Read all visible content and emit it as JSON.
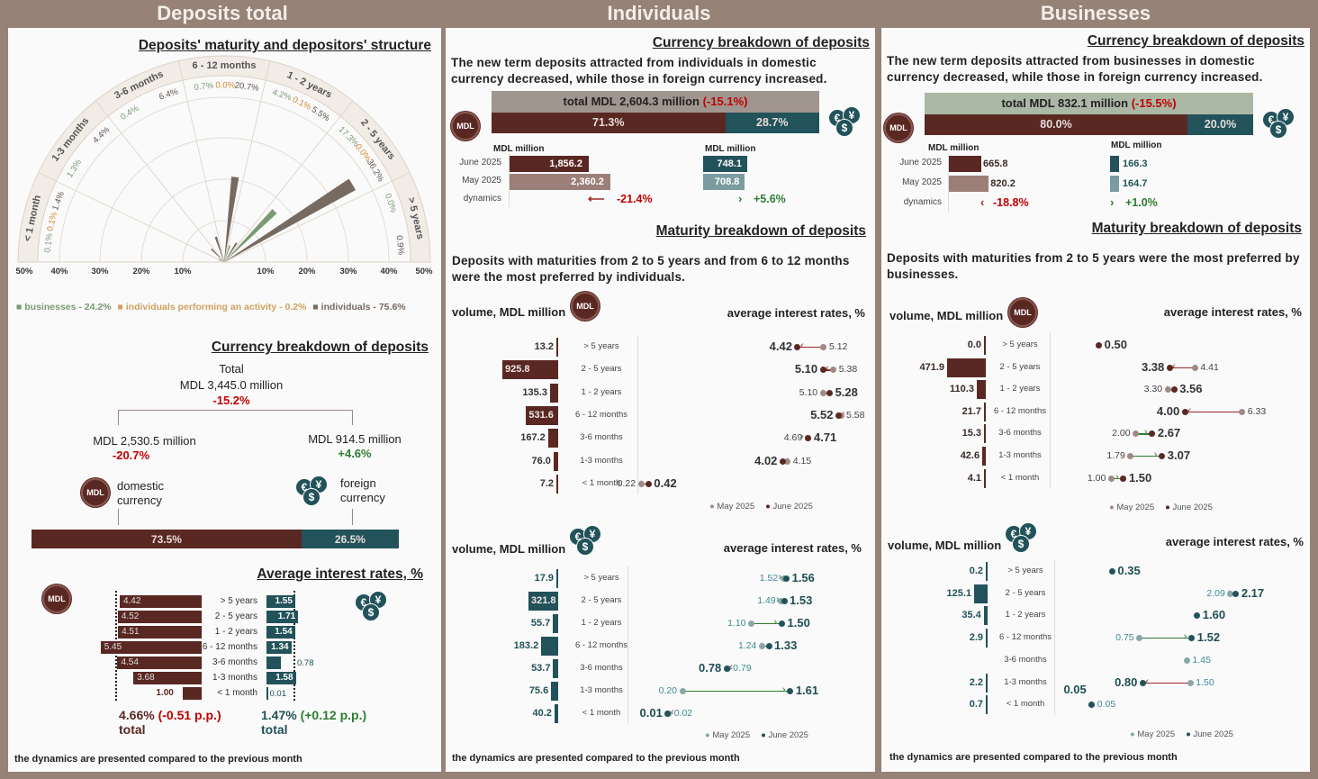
{
  "colors": {
    "background": "#968276",
    "mdl": "#5a2823",
    "fx": "#22525a",
    "mdl_light": "#9c7f79",
    "fx_light": "#7a9ca0",
    "businesses": "#7a9a74",
    "individuals_activity": "#d8b07a",
    "individuals": "#776a61",
    "decrease": "#c00000",
    "increase": "#2e7d32"
  },
  "icons": {
    "mdl": "MDL",
    "coins": [
      "€",
      "¥",
      "$"
    ]
  },
  "headers": {
    "total": "Deposits total",
    "individuals": "Individuals",
    "businesses": "Businesses"
  },
  "terms": [
    "> 5 years",
    "2 - 5 years",
    "1 - 2 years",
    "6 - 12 months",
    "3-6 months",
    "1-3 months",
    "< 1 month"
  ],
  "total": {
    "maturity_title": "Deposits' maturity and depositors' structure",
    "legend": [
      "businesses - 24.2%",
      "individuals performing an activity - 0.2%",
      "individuals - 75.6%"
    ],
    "currency": {
      "title": "Currency breakdown of deposits",
      "total_label": "Total",
      "total_value": "MDL 3,445.0 million",
      "total_change": "-15.2%",
      "domestic_value": "MDL 2,530.5 million",
      "domestic_change": "-20.7%",
      "domestic_label": "domestic currency",
      "foreign_value": "MDL 914.5 million",
      "foreign_change": "+4.6%",
      "foreign_label": "foreign currency",
      "domestic_share_label": "73.5%",
      "foreign_share_label": "26.5%",
      "domestic_share": 73.5
    },
    "rates": {
      "title": "Average interest rates, %",
      "mdl_total": "4.66%",
      "mdl_change": "(-0.51 p.p.)",
      "fx_total": "1.47%",
      "fx_change": "(+0.12 p.p.)",
      "total_label": "total"
    },
    "footnote": "the dynamics are presented compared to the previous month"
  },
  "individuals": {
    "currency": {
      "title": "Currency breakdown of deposits",
      "text": "The new term deposits attracted from individuals in domestic currency decreased, while those in foreign currency increased.",
      "total": "total MDL 2,604.3 million",
      "total_change": "(-15.1%)",
      "mdl_share": 71.3,
      "mdl_share_label": "71.3%",
      "fx_share_label": "28.7%",
      "unit": "MDL million",
      "rows": [
        "June 2025",
        "May 2025",
        "dynamics"
      ],
      "mdl_values": [
        1856.2,
        2360.2
      ],
      "mdl_labels": [
        "1,856.2",
        "2,360.2"
      ],
      "mdl_change": "-21.4%",
      "fx_values": [
        748.1,
        708.8
      ],
      "fx_labels": [
        "748.1",
        "708.8"
      ],
      "fx_change": "+5.6%"
    },
    "maturity": {
      "title": "Maturity breakdown of deposits",
      "text": "Deposits with maturities from 2 to 5 years and from 6 to 12 months were the most preferred by individuals.",
      "volume_label": "volume, MDL million",
      "rates_label": "average interest rates, %"
    },
    "footnote": "the dynamics are presented compared to the previous month"
  },
  "businesses": {
    "currency": {
      "title": "Currency breakdown of deposits",
      "text": "The new term deposits attracted from businesses in domestic currency decreased, while those in foreign currency increased.",
      "total": "total MDL 832.1 million",
      "total_change": "(-15.5%)",
      "mdl_share": 80.0,
      "mdl_share_label": "80.0%",
      "fx_share_label": "20.0%",
      "unit": "MDL million",
      "rows": [
        "June 2025",
        "May 2025",
        "dynamics"
      ],
      "mdl_values": [
        665.8,
        820.2
      ],
      "mdl_labels": [
        "665.8",
        "820.2"
      ],
      "mdl_change": "-18.8%",
      "fx_values": [
        166.3,
        164.7
      ],
      "fx_labels": [
        "166.3",
        "164.7"
      ],
      "fx_change": "+1.0%"
    },
    "maturity": {
      "title": "Maturity breakdown of deposits",
      "text": "Deposits with maturities from 2 to 5 years were the most preferred by businesses.",
      "volume_label": "volume, MDL million",
      "rates_label": "average interest rates, %"
    },
    "footnote": "the dynamics are presented compared to the previous month"
  },
  "chart_data": [
    {
      "type": "polar-bar",
      "categories": [
        "< 1 month",
        "1-3 months",
        "3-6 months",
        "6 - 12 months",
        "1 - 2 years",
        "2 - 5 years",
        "> 5 years"
      ],
      "series": [
        {
          "name": "businesses",
          "values": [
            0.1,
            1.3,
            0.4,
            0.7,
            4.2,
            17.3,
            0.0
          ],
          "labels": [
            "0.1%",
            "1.3%",
            "0.4%",
            "0.7%",
            "4.2%",
            "17.3%",
            "0.0%"
          ]
        },
        {
          "name": "individuals performing an activity",
          "values": [
            0.1,
            null,
            null,
            0.0,
            0.1,
            0.0,
            null
          ],
          "labels": [
            "0.1%",
            null,
            null,
            "0.0%",
            "0.1%",
            "0.0%",
            null
          ]
        },
        {
          "name": "individuals",
          "values": [
            1.4,
            4.4,
            6.4,
            20.7,
            5.5,
            36.2,
            0.9
          ],
          "labels": [
            "1.4%",
            "4.4%",
            "6.4%",
            "20.7%",
            "5.5%",
            "36.2%",
            "0.9%"
          ]
        }
      ],
      "rlim": [
        0,
        50
      ],
      "ticks": [
        "10%",
        "20%",
        "30%",
        "40%",
        "50%"
      ],
      "grid": true
    },
    {
      "type": "bar",
      "title": "Average interest rates, %",
      "categories": [
        "> 5 years",
        "2 - 5 years",
        "1 - 2 years",
        "6 - 12 months",
        "3-6 months",
        "1-3 months",
        "< 1 month"
      ],
      "series": [
        {
          "name": "MDL",
          "values": [
            4.42,
            4.52,
            4.51,
            5.45,
            4.54,
            3.68,
            1.0
          ],
          "labels": [
            "4.42",
            "4.52",
            "4.51",
            "5.45",
            "4.54",
            "3.68",
            "1.00"
          ]
        },
        {
          "name": "foreign currency",
          "values": [
            1.55,
            1.71,
            1.54,
            1.34,
            0.78,
            1.58,
            0.01
          ],
          "labels": [
            "1.55",
            "1.71",
            "1.54",
            "1.34",
            "0.78",
            "1.58",
            "0.01"
          ]
        }
      ],
      "totals": [
        4.66,
        1.47
      ]
    },
    {
      "type": "dumbbell",
      "group": "individuals",
      "currency": "MDL",
      "categories": [
        "> 5 years",
        "2 - 5 years",
        "1 - 2 years",
        "6 - 12 months",
        "3-6 months",
        "1-3 months",
        "< 1 month"
      ],
      "volume": [
        13.2,
        925.8,
        135.3,
        531.6,
        167.2,
        76.0,
        7.2
      ],
      "volume_labels": [
        "13.2",
        "925.8",
        "135.3",
        "531.6",
        "167.2",
        "76.0",
        "7.2"
      ],
      "series": [
        {
          "name": "May 2025",
          "values": [
            5.12,
            5.38,
            5.1,
            5.58,
            4.69,
            4.15,
            0.22
          ],
          "labels": [
            "5.12",
            "5.38",
            "5.10",
            "5.58",
            "4.69",
            "4.15",
            "0.22"
          ]
        },
        {
          "name": "June 2025",
          "values": [
            4.42,
            5.1,
            5.28,
            5.52,
            4.71,
            4.02,
            0.42
          ],
          "labels": [
            "4.42",
            "5.10",
            "5.28",
            "5.52",
            "4.71",
            "4.02",
            "0.42"
          ]
        }
      ]
    },
    {
      "type": "dumbbell",
      "group": "individuals",
      "currency": "foreign",
      "categories": [
        "> 5 years",
        "2 - 5 years",
        "1 - 2 years",
        "6 - 12 months",
        "3-6 months",
        "1-3 months",
        "< 1 month"
      ],
      "volume": [
        17.9,
        321.8,
        55.7,
        183.2,
        53.7,
        75.6,
        40.2
      ],
      "volume_labels": [
        "17.9",
        "321.8",
        "55.7",
        "183.2",
        "53.7",
        "75.6",
        "40.2"
      ],
      "series": [
        {
          "name": "May 2025",
          "values": [
            1.52,
            1.49,
            1.1,
            1.24,
            0.79,
            0.2,
            0.02
          ],
          "labels": [
            "1.52",
            "1.49",
            "1.10",
            "1.24",
            "0.79",
            "0.20",
            "0.02"
          ]
        },
        {
          "name": "June 2025",
          "values": [
            1.56,
            1.53,
            1.5,
            1.33,
            0.78,
            1.61,
            0.01
          ],
          "labels": [
            "1.56",
            "1.53",
            "1.50",
            "1.33",
            "0.78",
            "1.61",
            "0.01"
          ]
        }
      ]
    },
    {
      "type": "dumbbell",
      "group": "businesses",
      "currency": "MDL",
      "categories": [
        "> 5 years",
        "2 - 5 years",
        "1 - 2 years",
        "6 - 12 months",
        "3-6 months",
        "1-3 months",
        "< 1 month"
      ],
      "volume": [
        0.0,
        471.9,
        110.3,
        21.7,
        15.3,
        42.6,
        4.1
      ],
      "volume_labels": [
        "0.0",
        "471.9",
        "110.3",
        "21.7",
        "15.3",
        "42.6",
        "4.1"
      ],
      "series": [
        {
          "name": "May 2025",
          "values": [
            null,
            4.41,
            3.3,
            6.33,
            2.0,
            1.79,
            1.0
          ],
          "labels": [
            null,
            "4.41",
            "3.30",
            "6.33",
            "2.00",
            "1.79",
            "1.00"
          ]
        },
        {
          "name": "June 2025",
          "values": [
            0.5,
            3.38,
            3.56,
            4.0,
            2.67,
            3.07,
            1.5
          ],
          "labels": [
            "0.50",
            "3.38",
            "3.56",
            "4.00",
            "2.67",
            "3.07",
            "1.50"
          ]
        }
      ]
    },
    {
      "type": "dumbbell",
      "group": "businesses",
      "currency": "foreign",
      "categories": [
        "> 5 years",
        "2 - 5 years",
        "1 - 2 years",
        "6 - 12 months",
        "3-6 months",
        "1-3 months",
        "< 1 month"
      ],
      "volume": [
        0.2,
        125.1,
        35.4,
        2.9,
        null,
        2.2,
        0.7
      ],
      "volume_labels": [
        "0.2",
        "125.1",
        "35.4",
        "2.9",
        null,
        "2.2",
        "0.7"
      ],
      "series": [
        {
          "name": "May 2025",
          "values": [
            null,
            2.09,
            null,
            0.75,
            1.45,
            1.5,
            0.05
          ],
          "labels": [
            null,
            "2.09",
            null,
            "0.75",
            "1.45",
            "1.50",
            "0.05"
          ]
        },
        {
          "name": "June 2025",
          "values": [
            0.35,
            2.17,
            1.6,
            1.52,
            null,
            0.8,
            0.05
          ],
          "labels": [
            "0.35",
            "2.17",
            "1.60",
            "1.52",
            null,
            "0.80",
            "0.05"
          ]
        }
      ]
    }
  ]
}
